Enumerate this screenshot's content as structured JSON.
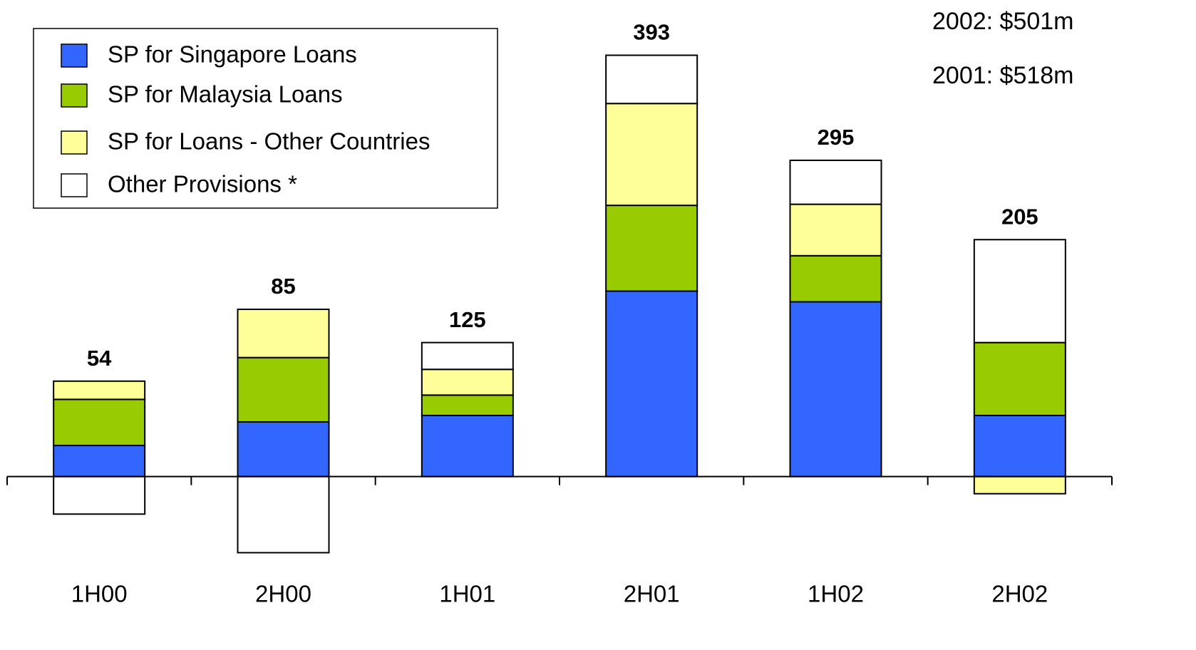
{
  "chart_data": {
    "type": "stacked-bar",
    "categories": [
      "1H00",
      "2H00",
      "1H01",
      "2H01",
      "1H02",
      "2H02"
    ],
    "series": [
      {
        "name": "SP for Singapore Loans",
        "color": "#3366ff",
        "values": [
          29,
          51,
          57,
          173,
          163,
          57
        ]
      },
      {
        "name": "SP for Malaysia Loans",
        "color": "#99cc00",
        "values": [
          43,
          60,
          19,
          80,
          43,
          68
        ]
      },
      {
        "name": "SP for Loans - Other Countries",
        "color": "#ffff99",
        "values": [
          17,
          45,
          24,
          95,
          48,
          -16
        ]
      },
      {
        "name": "Other Provisions *",
        "color": "#ffffff",
        "values": [
          -35,
          -71,
          25,
          45,
          41,
          96
        ]
      }
    ],
    "totals": [
      54,
      85,
      125,
      393,
      295,
      205
    ],
    "annotations": [
      "2002: $501m",
      "2001: $518m"
    ],
    "ylim": [
      -80,
      400
    ],
    "legend": "top-left"
  }
}
